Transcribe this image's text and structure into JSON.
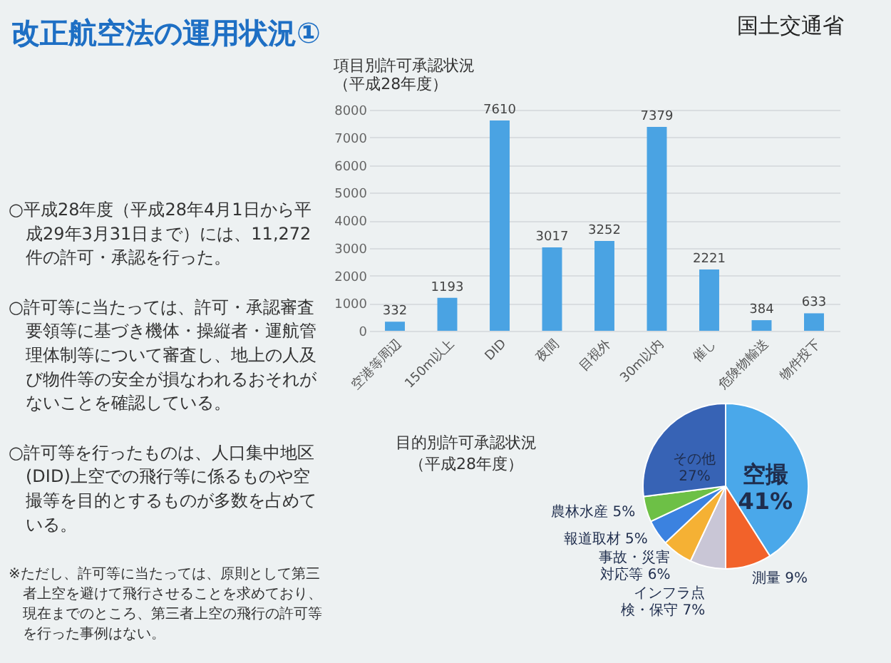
{
  "chart_data": [
    {
      "type": "other",
      "title": "改正航空法の運用状況①",
      "annotations": [
        "国土交通省",
        "○平成28年度（平成28年4月1日から平成29年3月31日まで）には、11,272件の許可・承認を行った。",
        "○許可等に当たっては、許可・承認審査要領等に基づき機体・操縦者・運航管理体制等について審査し、地上の人及び物件等の安全が損なわれるおそれがないことを確認している。",
        "○許可等を行ったものは、人口集中地区(DID)上空での飛行等に係るものや空撮等を目的とするものが多数を占めている。",
        "※ただし、許可等に当たっては、原則として第三者上空を避けて飛行させることを求めており、現在までのところ、第三者上空の飛行の許可等を行った事例はない。"
      ]
    },
    {
      "type": "bar",
      "title": "項目別許可承認状況（平成28年度）",
      "categories": [
        "空港等周辺",
        "150m以上",
        "DID",
        "夜間",
        "目視外",
        "30m以内",
        "催し",
        "危険物輸送",
        "物件投下"
      ],
      "values": [
        332,
        1193,
        7610,
        3017,
        3252,
        7379,
        2221,
        384,
        633
      ],
      "color": "#4aa3e3",
      "ylim": [
        0,
        8000
      ],
      "yticks": [
        0,
        1000,
        2000,
        3000,
        4000,
        5000,
        6000,
        7000,
        8000
      ],
      "grid": "y",
      "data_labels": true
    },
    {
      "type": "pie",
      "title": "目的別許可承認状況（平成28年度）",
      "categories": [
        "空撮",
        "測量",
        "インフラ点検・保守",
        "事故・災害対応等",
        "報道取材",
        "農林水産",
        "その他"
      ],
      "values": [
        41,
        9,
        7,
        6,
        5,
        5,
        27
      ],
      "colors": [
        "#4aa8ea",
        "#f2622a",
        "#c9c6d6",
        "#f5b134",
        "#3b82e0",
        "#6dc046",
        "#3763b5"
      ],
      "value_labels": [
        "41%",
        "9%",
        "7%",
        "6%",
        "5%",
        "5%",
        "27%"
      ]
    }
  ]
}
